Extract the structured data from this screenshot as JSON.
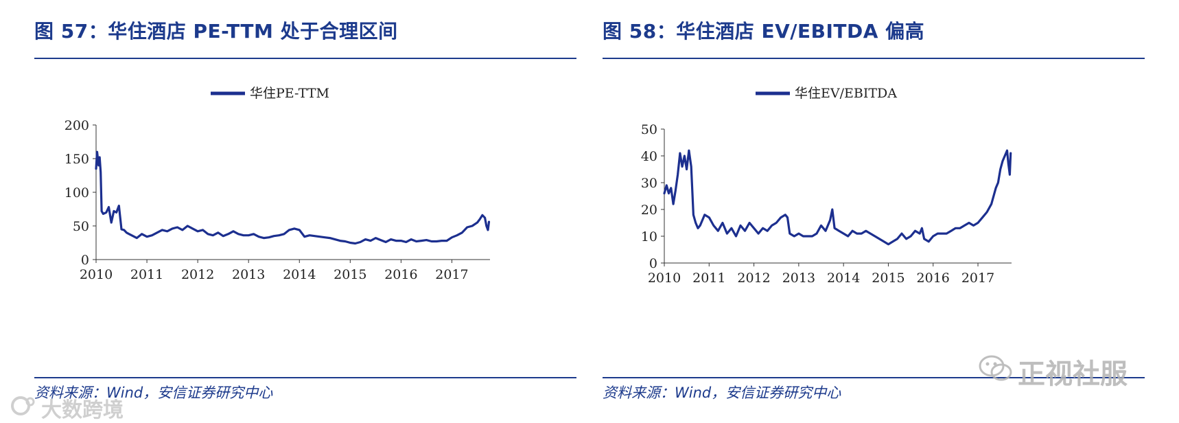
{
  "left": {
    "figure_title": "图 57：华住酒店 PE-TTM 处于合理区间",
    "source": "资料来源：Wind，安信证券研究中心"
  },
  "right": {
    "figure_title": "图 58：华住酒店 EV/EBITDA 偏高",
    "source": "资料来源：Wind，安信证券研究中心"
  },
  "watermarks": {
    "right": "正视社服",
    "left": "大数跨境",
    "right_icon": "wechat-icon",
    "left_icon": "logo-icon"
  },
  "colors": {
    "series": "#1c2f8f",
    "title": "#1c3a8c",
    "axis": "#333333"
  },
  "chart_data": [
    {
      "type": "line",
      "title": "",
      "legend": [
        "华住PE-TTM"
      ],
      "legend_position": "top-center",
      "xlabel": "",
      "ylabel": "",
      "xlim": [
        2010.0,
        2017.75
      ],
      "ylim": [
        0,
        200
      ],
      "yticks": [
        0,
        50,
        100,
        150,
        200
      ],
      "xticks": [
        2010,
        2011,
        2012,
        2013,
        2014,
        2015,
        2016,
        2017
      ],
      "x": [
        2010.0,
        2010.02,
        2010.05,
        2010.07,
        2010.09,
        2010.11,
        2010.14,
        2010.2,
        2010.25,
        2010.3,
        2010.35,
        2010.4,
        2010.45,
        2010.5,
        2010.55,
        2010.6,
        2010.65,
        2010.7,
        2010.8,
        2010.9,
        2011.0,
        2011.1,
        2011.2,
        2011.3,
        2011.4,
        2011.5,
        2011.6,
        2011.7,
        2011.8,
        2011.9,
        2012.0,
        2012.1,
        2012.2,
        2012.3,
        2012.4,
        2012.5,
        2012.6,
        2012.7,
        2012.8,
        2012.9,
        2013.0,
        2013.1,
        2013.2,
        2013.3,
        2013.4,
        2013.5,
        2013.6,
        2013.7,
        2013.8,
        2013.9,
        2014.0,
        2014.1,
        2014.2,
        2014.3,
        2014.4,
        2014.5,
        2014.6,
        2014.7,
        2014.8,
        2014.9,
        2015.0,
        2015.1,
        2015.2,
        2015.3,
        2015.4,
        2015.5,
        2015.6,
        2015.7,
        2015.8,
        2015.9,
        2016.0,
        2016.1,
        2016.2,
        2016.3,
        2016.4,
        2016.5,
        2016.6,
        2016.7,
        2016.8,
        2016.9,
        2017.0,
        2017.1,
        2017.2,
        2017.3,
        2017.4,
        2017.5,
        2017.55,
        2017.6,
        2017.65,
        2017.68,
        2017.71,
        2017.73
      ],
      "values": [
        135,
        160,
        140,
        152,
        130,
        72,
        68,
        70,
        78,
        55,
        72,
        70,
        80,
        45,
        44,
        40,
        38,
        36,
        32,
        38,
        34,
        36,
        40,
        44,
        42,
        46,
        48,
        44,
        50,
        46,
        42,
        44,
        38,
        36,
        40,
        35,
        38,
        42,
        38,
        36,
        36,
        38,
        34,
        32,
        33,
        35,
        36,
        38,
        44,
        46,
        44,
        34,
        36,
        35,
        34,
        33,
        32,
        30,
        28,
        27,
        25,
        24,
        26,
        30,
        28,
        32,
        29,
        26,
        30,
        28,
        28,
        26,
        30,
        27,
        28,
        29,
        27,
        27,
        28,
        28,
        33,
        36,
        40,
        48,
        50,
        55,
        60,
        66,
        62,
        50,
        44,
        56
      ]
    },
    {
      "type": "line",
      "title": "",
      "legend": [
        "华住EV/EBITDA"
      ],
      "legend_position": "top-center",
      "xlabel": "",
      "ylabel": "",
      "xlim": [
        2010.0,
        2017.75
      ],
      "ylim": [
        0,
        50
      ],
      "yticks": [
        0,
        10,
        20,
        30,
        40,
        50
      ],
      "xticks": [
        2010,
        2011,
        2012,
        2013,
        2014,
        2015,
        2016,
        2017
      ],
      "x": [
        2010.0,
        2010.05,
        2010.1,
        2010.15,
        2010.2,
        2010.25,
        2010.3,
        2010.35,
        2010.4,
        2010.45,
        2010.5,
        2010.55,
        2010.6,
        2010.65,
        2010.7,
        2010.75,
        2010.8,
        2010.9,
        2011.0,
        2011.1,
        2011.2,
        2011.3,
        2011.4,
        2011.5,
        2011.6,
        2011.7,
        2011.8,
        2011.9,
        2012.0,
        2012.1,
        2012.2,
        2012.3,
        2012.4,
        2012.5,
        2012.6,
        2012.7,
        2012.75,
        2012.8,
        2012.9,
        2013.0,
        2013.1,
        2013.2,
        2013.3,
        2013.4,
        2013.5,
        2013.6,
        2013.7,
        2013.75,
        2013.8,
        2013.9,
        2014.0,
        2014.1,
        2014.2,
        2014.3,
        2014.4,
        2014.5,
        2014.6,
        2014.7,
        2014.8,
        2014.9,
        2015.0,
        2015.1,
        2015.2,
        2015.3,
        2015.4,
        2015.5,
        2015.6,
        2015.7,
        2015.75,
        2015.8,
        2015.9,
        2016.0,
        2016.1,
        2016.2,
        2016.3,
        2016.4,
        2016.5,
        2016.6,
        2016.7,
        2016.8,
        2016.9,
        2017.0,
        2017.1,
        2017.2,
        2017.3,
        2017.4,
        2017.45,
        2017.5,
        2017.55,
        2017.6,
        2017.65,
        2017.68,
        2017.71,
        2017.73
      ],
      "values": [
        26,
        29,
        26,
        28,
        22,
        27,
        33,
        41,
        36,
        40,
        35,
        42,
        36,
        18,
        15,
        13,
        14,
        18,
        17,
        14,
        12,
        15,
        11,
        13,
        10,
        14,
        12,
        15,
        13,
        11,
        13,
        12,
        14,
        15,
        17,
        18,
        17,
        11,
        10,
        11,
        10,
        10,
        10,
        11,
        14,
        12,
        16,
        20,
        13,
        12,
        11,
        10,
        12,
        11,
        11,
        12,
        11,
        10,
        9,
        8,
        7,
        8,
        9,
        11,
        9,
        10,
        12,
        11,
        13,
        9,
        8,
        10,
        11,
        11,
        11,
        12,
        13,
        13,
        14,
        15,
        14,
        15,
        17,
        19,
        22,
        28,
        30,
        35,
        38,
        40,
        42,
        37,
        33,
        41
      ]
    }
  ]
}
